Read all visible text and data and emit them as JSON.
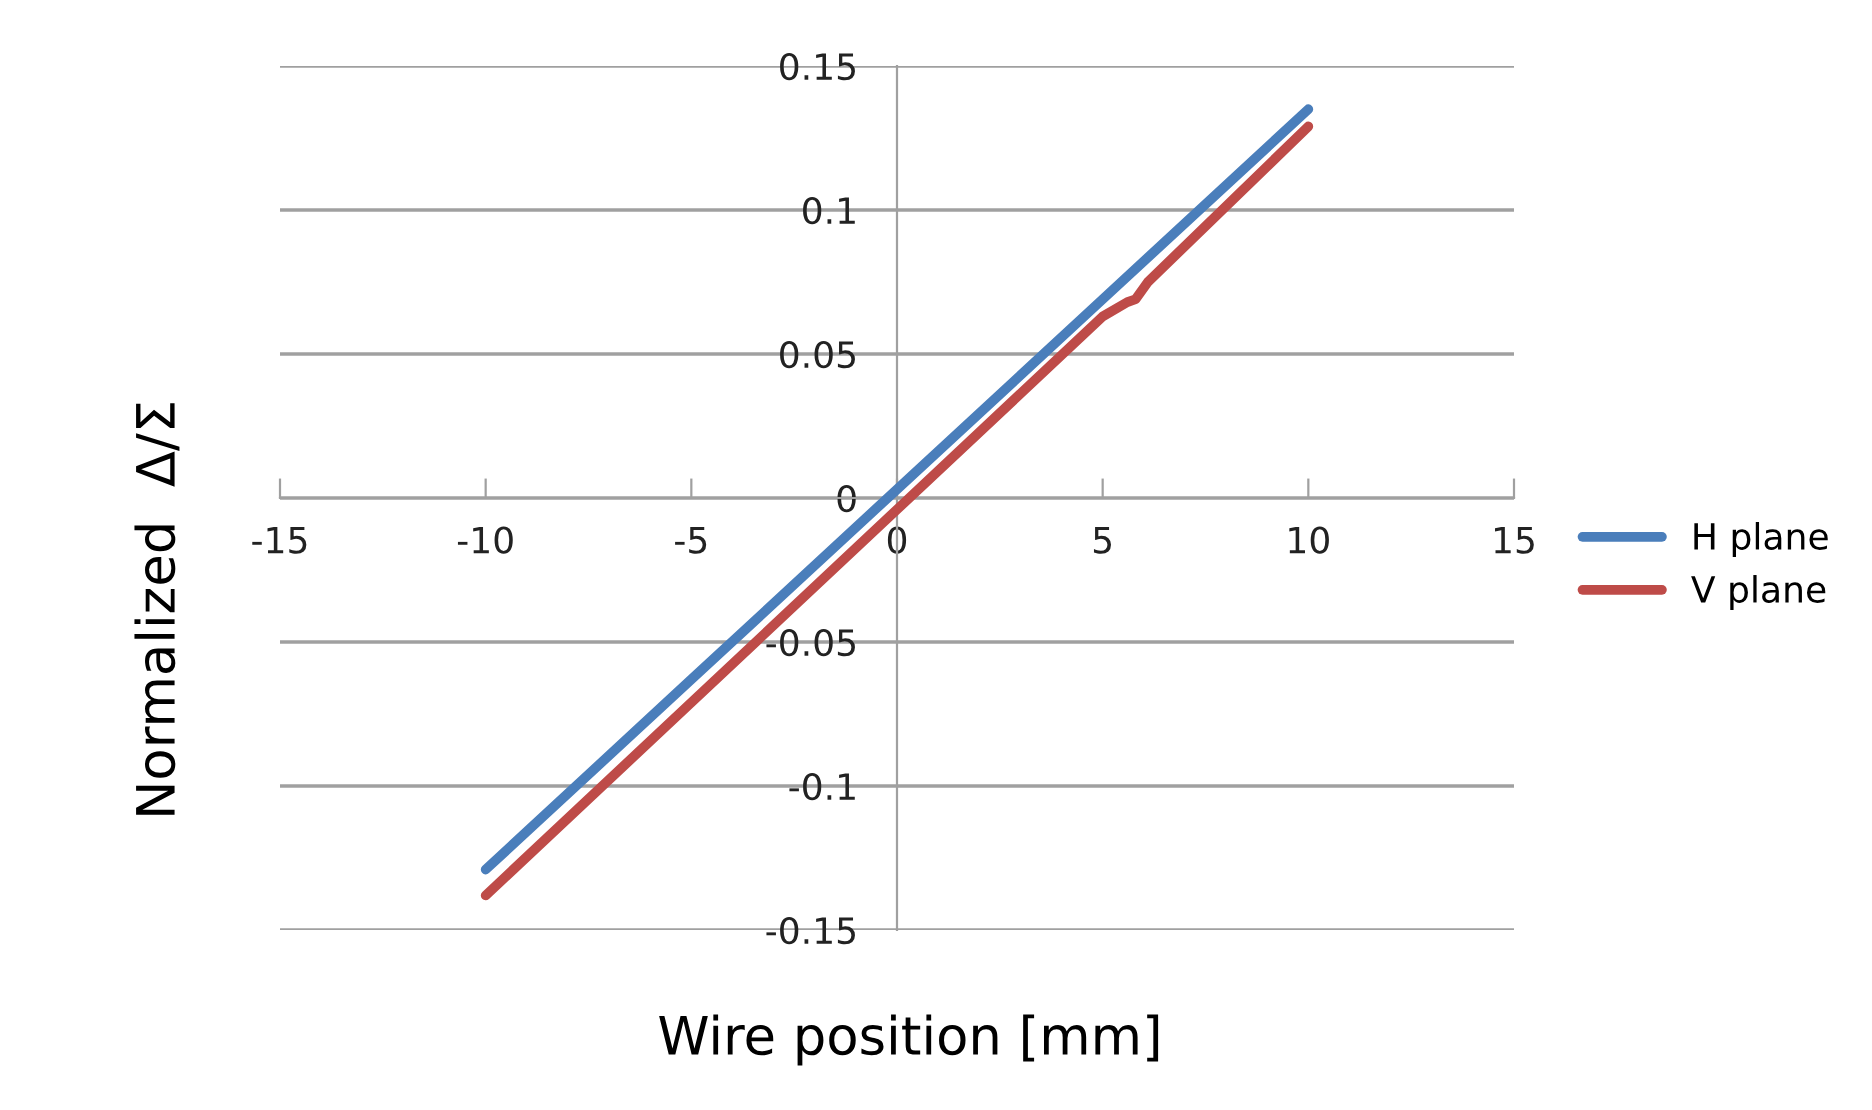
{
  "chart_data": {
    "type": "line",
    "xlabel": "Wire position [mm]",
    "ylabel": "Normalized  Δ/Σ",
    "xlim": [
      -15,
      15
    ],
    "xticks": [
      -15,
      -10,
      -5,
      0,
      5,
      10,
      15
    ],
    "ylim": [
      -0.15,
      0.15
    ],
    "yticks": [
      -0.15,
      -0.1,
      -0.05,
      0,
      0.05,
      0.1,
      0.15
    ],
    "grid": "y",
    "legend": "right",
    "marker": "none",
    "line_style": "solid",
    "series": [
      {
        "name": "H plane",
        "color": "#4a7ebb",
        "x": [
          -10,
          -5,
          0,
          5,
          10
        ],
        "values": [
          -0.129,
          -0.063,
          0.003,
          0.069,
          0.135
        ]
      },
      {
        "name": "V plane",
        "color": "#be4b48",
        "x": [
          -10,
          -5,
          0,
          5,
          5.6,
          5.8,
          6.1,
          10
        ],
        "values": [
          -0.138,
          -0.071,
          -0.004,
          0.063,
          0.068,
          0.069,
          0.075,
          0.129
        ]
      }
    ]
  }
}
